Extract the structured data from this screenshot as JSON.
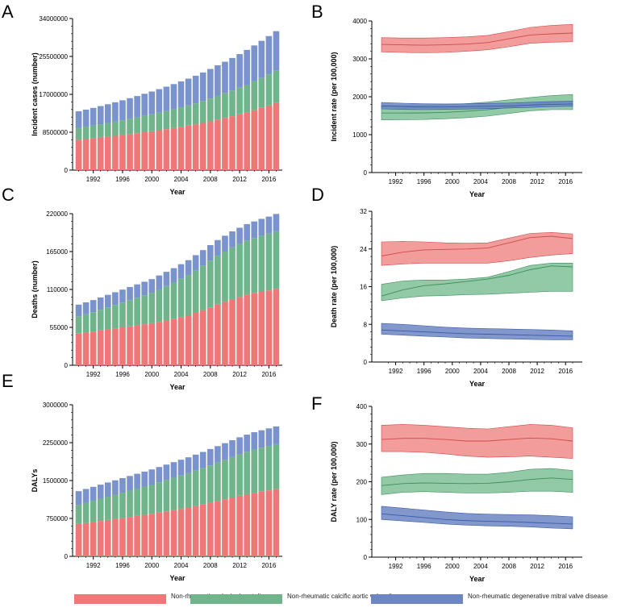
{
  "colors": {
    "vhd": "#ee7777",
    "vhd_band": "#f08b8b",
    "cavd": "#6fb48a",
    "cavd_band": "#7fbf96",
    "dmvd": "#7b93cc",
    "dmvd_band": "#6c86c4",
    "axis": "#000000"
  },
  "legend": [
    {
      "label": "Non-rheumatic valvular heart disease",
      "color": "#ee7777"
    },
    {
      "label": "Non-rheumatic calcific aortic valve disease",
      "color": "#6fb48a"
    },
    {
      "label": "Non-rheumatic degenerative mitral valve disease",
      "color": "#6c86c4"
    }
  ],
  "chart_data": [
    {
      "panel": "A",
      "type": "bar",
      "stacked": true,
      "xlabel": "Year",
      "ylabel": "Incident cases (number)",
      "ylim": [
        0,
        34000000
      ],
      "yticks": [
        "0",
        "8500000",
        "17000000",
        "25500000",
        "34000000"
      ],
      "xticks": [
        "1992",
        "1996",
        "2000",
        "2004",
        "2008",
        "2012",
        "2016"
      ],
      "categories": [
        "1990",
        "1991",
        "1992",
        "1993",
        "1994",
        "1995",
        "1996",
        "1997",
        "1998",
        "1999",
        "2000",
        "2001",
        "2002",
        "2003",
        "2004",
        "2005",
        "2006",
        "2007",
        "2008",
        "2009",
        "2010",
        "2011",
        "2012",
        "2013",
        "2014",
        "2015",
        "2016",
        "2017"
      ],
      "series": [
        {
          "name": "Non-rheumatic valvular heart disease (total)",
          "values": [
            6800000,
            6960000,
            7130000,
            7310000,
            7490000,
            7680000,
            7880000,
            8080000,
            8290000,
            8500000,
            8720000,
            8950000,
            9190000,
            9440000,
            9700000,
            9970000,
            10250000,
            10580000,
            10950000,
            11330000,
            11700000,
            12100000,
            12500000,
            12950000,
            13450000,
            13960000,
            14500000,
            15050000
          ]
        },
        {
          "name": "Non-rheumatic calcific aortic valve disease",
          "values": [
            2700000,
            2790000,
            2880000,
            2980000,
            3080000,
            3190000,
            3300000,
            3420000,
            3540000,
            3670000,
            3800000,
            3940000,
            4080000,
            4230000,
            4390000,
            4550000,
            4720000,
            4910000,
            5110000,
            5320000,
            5530000,
            5750000,
            5980000,
            6220000,
            6460000,
            6720000,
            6980000,
            7250000
          ]
        },
        {
          "name": "Non-rheumatic degenerative mitral valve disease",
          "values": [
            3700000,
            3820000,
            3950000,
            4080000,
            4210000,
            4350000,
            4490000,
            4640000,
            4790000,
            4950000,
            5110000,
            5280000,
            5450000,
            5630000,
            5810000,
            6000000,
            6200000,
            6410000,
            6630000,
            6860000,
            7080000,
            7310000,
            7550000,
            7800000,
            8060000,
            8320000,
            8590000,
            8870000
          ]
        }
      ]
    },
    {
      "panel": "B",
      "type": "area",
      "xlabel": "Year",
      "ylabel": "Incident rate (per 100,000)",
      "ylim": [
        0,
        4000
      ],
      "xlim": [
        1990,
        2017
      ],
      "yticks": [
        "0",
        "1000",
        "2000",
        "3000",
        "4000"
      ],
      "xticks": [
        "1992",
        "1996",
        "2000",
        "2004",
        "2008",
        "2012",
        "2016"
      ],
      "x": [
        1990,
        1993,
        1996,
        1999,
        2002,
        2005,
        2008,
        2011,
        2014,
        2017
      ],
      "series": [
        {
          "name": "Non-rheumatic valvular heart disease",
          "mean": [
            3380,
            3370,
            3360,
            3370,
            3390,
            3430,
            3530,
            3630,
            3660,
            3680
          ],
          "lower": [
            3180,
            3170,
            3160,
            3170,
            3200,
            3240,
            3320,
            3410,
            3440,
            3450
          ],
          "upper": [
            3560,
            3550,
            3550,
            3560,
            3580,
            3620,
            3720,
            3830,
            3880,
            3910
          ]
        },
        {
          "name": "Non-rheumatic calcific aortic valve disease",
          "mean": [
            1570,
            1570,
            1575,
            1590,
            1620,
            1660,
            1720,
            1790,
            1840,
            1870
          ],
          "lower": [
            1390,
            1395,
            1400,
            1420,
            1450,
            1490,
            1560,
            1630,
            1660,
            1660
          ],
          "upper": [
            1770,
            1775,
            1780,
            1790,
            1820,
            1860,
            1920,
            1980,
            2030,
            2060
          ]
        },
        {
          "name": "Non-rheumatic degenerative mitral valve disease",
          "mean": [
            1760,
            1740,
            1730,
            1730,
            1740,
            1750,
            1760,
            1780,
            1800,
            1810
          ],
          "lower": [
            1680,
            1665,
            1660,
            1665,
            1675,
            1690,
            1705,
            1720,
            1740,
            1750
          ],
          "upper": [
            1850,
            1830,
            1815,
            1810,
            1815,
            1825,
            1835,
            1855,
            1875,
            1880
          ]
        }
      ]
    },
    {
      "panel": "C",
      "type": "bar",
      "stacked": true,
      "xlabel": "Year",
      "ylabel": "Deaths (number)",
      "ylim": [
        0,
        220000
      ],
      "yticks": [
        "0",
        "55000",
        "110000",
        "165000",
        "220000"
      ],
      "xticks": [
        "1992",
        "1996",
        "2000",
        "2004",
        "2008",
        "2012",
        "2016"
      ],
      "categories": [
        "1990",
        "1991",
        "1992",
        "1993",
        "1994",
        "1995",
        "1996",
        "1997",
        "1998",
        "1999",
        "2000",
        "2001",
        "2002",
        "2003",
        "2004",
        "2005",
        "2006",
        "2007",
        "2008",
        "2009",
        "2010",
        "2011",
        "2012",
        "2013",
        "2014",
        "2015",
        "2016",
        "2017"
      ],
      "series": [
        {
          "name": "Non-rheumatic valvular heart disease (total)",
          "values": [
            46000,
            47500,
            49000,
            50500,
            52000,
            53500,
            55000,
            56500,
            58000,
            59500,
            61000,
            63000,
            65000,
            67000,
            69500,
            72000,
            76000,
            80000,
            84000,
            88000,
            92000,
            96000,
            99000,
            102000,
            104500,
            106500,
            108500,
            111000
          ]
        },
        {
          "name": "Non-rheumatic calcific aortic valve disease",
          "values": [
            25000,
            26500,
            28000,
            30000,
            32000,
            34000,
            36000,
            38000,
            40000,
            42000,
            44000,
            47000,
            50000,
            53000,
            56000,
            59000,
            62000,
            65000,
            68000,
            71000,
            73000,
            75000,
            77000,
            79000,
            80000,
            81500,
            82500,
            83500
          ]
        },
        {
          "name": "Non-rheumatic degenerative mitral valve disease",
          "values": [
            17000,
            17300,
            17600,
            17900,
            18200,
            18500,
            18800,
            19100,
            19400,
            19700,
            20000,
            20300,
            20600,
            20900,
            21200,
            21500,
            21800,
            22100,
            22400,
            22700,
            23000,
            23300,
            23600,
            23900,
            24200,
            24500,
            24800,
            25100
          ]
        }
      ]
    },
    {
      "panel": "D",
      "type": "area",
      "xlabel": "Year",
      "ylabel": "Death rate (per 100,000)",
      "ylim": [
        0,
        32
      ],
      "xlim": [
        1990,
        2017
      ],
      "yticks": [
        "0",
        "8",
        "16",
        "24",
        "32"
      ],
      "xticks": [
        "1992",
        "1996",
        "2000",
        "2004",
        "2008",
        "2012",
        "2016"
      ],
      "x": [
        1990,
        1993,
        1996,
        1999,
        2002,
        2005,
        2008,
        2011,
        2014,
        2017
      ],
      "series": [
        {
          "name": "Non-rheumatic valvular heart disease",
          "mean": [
            22.5,
            23.3,
            23.8,
            23.9,
            24.0,
            24.2,
            25.3,
            26.4,
            26.7,
            26.2
          ],
          "lower": [
            20.5,
            20.8,
            21.0,
            21.0,
            21.0,
            21.0,
            21.5,
            22.2,
            22.7,
            23.0
          ],
          "upper": [
            25.5,
            25.6,
            25.5,
            25.3,
            25.2,
            25.3,
            26.3,
            27.3,
            27.5,
            27.2
          ]
        },
        {
          "name": "Non-rheumatic calcific aortic valve disease",
          "mean": [
            14.0,
            15.3,
            16.2,
            16.6,
            17.1,
            17.6,
            18.4,
            19.6,
            20.4,
            20.2
          ],
          "lower": [
            13.0,
            13.6,
            14.0,
            14.1,
            14.3,
            14.4,
            14.6,
            14.8,
            15.0,
            15.0
          ],
          "upper": [
            16.5,
            17.2,
            17.4,
            17.4,
            17.6,
            18.0,
            19.2,
            20.5,
            21.0,
            21.0
          ]
        },
        {
          "name": "Non-rheumatic degenerative mitral valve disease",
          "mean": [
            6.8,
            6.6,
            6.4,
            6.2,
            6.0,
            5.9,
            5.8,
            5.7,
            5.6,
            5.5
          ],
          "lower": [
            5.9,
            5.7,
            5.5,
            5.3,
            5.1,
            5.0,
            4.9,
            4.8,
            4.7,
            4.7
          ],
          "upper": [
            8.2,
            8.0,
            7.7,
            7.4,
            7.2,
            7.1,
            7.0,
            6.9,
            6.8,
            6.6
          ]
        }
      ]
    },
    {
      "panel": "E",
      "type": "bar",
      "stacked": true,
      "xlabel": "Year",
      "ylabel": "DALYs",
      "ylim": [
        0,
        3000000
      ],
      "yticks": [
        "0",
        "750000",
        "1500000",
        "2250000",
        "3000000"
      ],
      "xticks": [
        "1992",
        "1996",
        "2000",
        "2004",
        "2008",
        "2012",
        "2016"
      ],
      "categories": [
        "1990",
        "1991",
        "1992",
        "1993",
        "1994",
        "1995",
        "1996",
        "1997",
        "1998",
        "1999",
        "2000",
        "2001",
        "2002",
        "2003",
        "2004",
        "2005",
        "2006",
        "2007",
        "2008",
        "2009",
        "2010",
        "2011",
        "2012",
        "2013",
        "2014",
        "2015",
        "2016",
        "2017"
      ],
      "series": [
        {
          "name": "Non-rheumatic valvular heart disease (total)",
          "values": [
            640000,
            660000,
            680000,
            700000,
            720000,
            740000,
            760000,
            780000,
            800000,
            820000,
            840000,
            865000,
            890000,
            915000,
            940000,
            965000,
            995000,
            1025000,
            1060000,
            1095000,
            1130000,
            1165000,
            1200000,
            1230000,
            1255000,
            1280000,
            1305000,
            1330000
          ]
        },
        {
          "name": "Non-rheumatic calcific aortic valve disease",
          "values": [
            380000,
            400000,
            420000,
            440000,
            460000,
            480000,
            500000,
            520000,
            540000,
            560000,
            580000,
            600000,
            620000,
            640000,
            660000,
            680000,
            700000,
            720000,
            740000,
            760000,
            780000,
            800000,
            820000,
            840000,
            860000,
            870000,
            880000,
            890000
          ]
        },
        {
          "name": "Non-rheumatic degenerative mitral valve disease",
          "values": [
            270000,
            273000,
            276000,
            279000,
            282000,
            285000,
            288000,
            291000,
            294000,
            297000,
            300000,
            303000,
            306000,
            309000,
            312000,
            315000,
            318000,
            321000,
            324000,
            327000,
            330000,
            333000,
            336000,
            339000,
            342000,
            345000,
            348000,
            351000
          ]
        }
      ]
    },
    {
      "panel": "F",
      "type": "area",
      "xlabel": "Year",
      "ylabel": "DALY rate (per 100,000)",
      "ylim": [
        0,
        400
      ],
      "xlim": [
        1990,
        2017
      ],
      "yticks": [
        "0",
        "100",
        "200",
        "300",
        "400"
      ],
      "xticks": [
        "1992",
        "1996",
        "2000",
        "2004",
        "2008",
        "2012",
        "2016"
      ],
      "x": [
        1990,
        1993,
        1996,
        1999,
        2002,
        2005,
        2008,
        2011,
        2014,
        2017
      ],
      "series": [
        {
          "name": "Non-rheumatic valvular heart disease",
          "mean": [
            312,
            315,
            315,
            312,
            308,
            308,
            312,
            316,
            314,
            308
          ],
          "lower": [
            280,
            280,
            278,
            274,
            268,
            265,
            266,
            268,
            265,
            262
          ],
          "upper": [
            350,
            352,
            350,
            346,
            342,
            340,
            346,
            352,
            350,
            343
          ]
        },
        {
          "name": "Non-rheumatic calcific aortic valve disease",
          "mean": [
            190,
            195,
            197,
            196,
            195,
            196,
            200,
            206,
            210,
            206
          ],
          "lower": [
            166,
            172,
            174,
            172,
            170,
            170,
            172,
            175,
            175,
            172
          ],
          "upper": [
            212,
            218,
            222,
            222,
            220,
            220,
            225,
            233,
            235,
            230
          ]
        },
        {
          "name": "Non-rheumatic degenerative mitral valve disease",
          "mean": [
            115,
            110,
            105,
            100,
            97,
            95,
            94,
            92,
            90,
            88
          ],
          "lower": [
            100,
            96,
            92,
            88,
            85,
            83,
            82,
            80,
            77,
            75
          ],
          "upper": [
            135,
            130,
            125,
            120,
            116,
            114,
            113,
            112,
            110,
            107
          ]
        }
      ]
    }
  ],
  "panel_labels": [
    "A",
    "B",
    "C",
    "D",
    "E",
    "F"
  ]
}
